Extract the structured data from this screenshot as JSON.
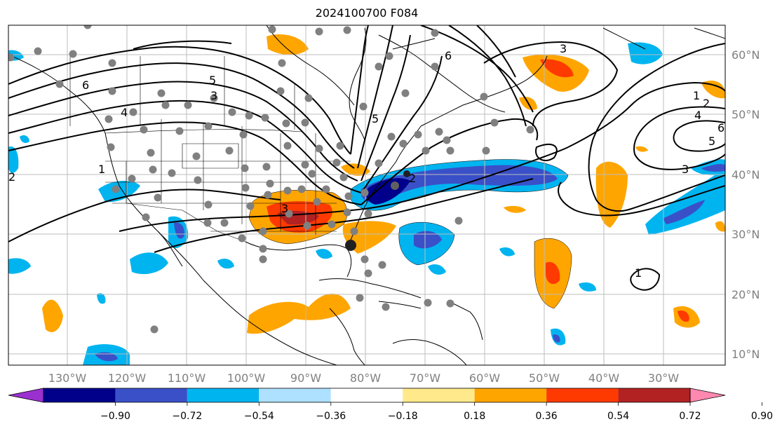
{
  "title": "2024100700 F084",
  "map": {
    "lon_labels": [
      "130°W",
      "120°W",
      "110°W",
      "100°W",
      "90°W",
      "80°W",
      "70°W",
      "60°W",
      "50°W",
      "40°W",
      "30°W"
    ],
    "lat_labels": [
      "60°N",
      "50°N",
      "40°N",
      "30°N",
      "20°N",
      "10°N"
    ],
    "lon_range": [
      -138,
      -18
    ],
    "lat_range": [
      8,
      65
    ],
    "grid": true
  },
  "contour_labels": [
    "6",
    "5",
    "4",
    "3",
    "2",
    "1",
    "6",
    "3",
    "1",
    "2",
    "4",
    "6",
    "5",
    "3",
    "5",
    "2",
    "3",
    "1"
  ],
  "colorbar": {
    "ticks": [
      "−0.90",
      "−0.72",
      "−0.54",
      "−0.36",
      "−0.18",
      "0.18",
      "0.36",
      "0.54",
      "0.72",
      "0.90"
    ],
    "colors": [
      "#9b30d0",
      "#00008b",
      "#3a50c8",
      "#00b4f0",
      "#aee1ff",
      "#ffffff",
      "#ffe98a",
      "#ffa500",
      "#ff3a00",
      "#b22222",
      "#ff88b0"
    ]
  }
}
